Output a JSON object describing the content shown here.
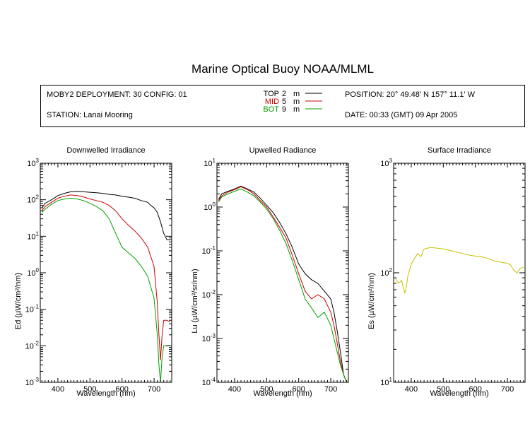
{
  "title": "Marine Optical Buoy NOAA/MLML",
  "header": {
    "deployment": "MOBY2 DEPLOYMENT: 30 CONFIG: 01",
    "station": "STATION: Lanai Mooring",
    "position": "POSITION: 20° 49.48' N   157° 11.1' W",
    "date": "DATE: 00:33 (GMT) 09 Apr 2005"
  },
  "legend": [
    {
      "name": "TOP",
      "depth": "2",
      "unit": "m",
      "color": "#000000"
    },
    {
      "name": "MID",
      "depth": "5",
      "unit": "m",
      "color": "#cc0000"
    },
    {
      "name": "BOT",
      "depth": "9",
      "unit": "m",
      "color": "#00a000"
    }
  ],
  "chart_data": [
    {
      "type": "line",
      "title": "Downwelled Irradiance",
      "xlabel": "Wavelength (nm)",
      "ylabel": "Ed  (µW/cm²/nm)",
      "xlim": [
        345,
        755
      ],
      "ylim": [
        0.001,
        1000
      ],
      "yscale": "log",
      "xticks": [
        400,
        500,
        600,
        700
      ],
      "ytick_labels": [
        "10-3",
        "10-2",
        "10-1",
        "100",
        "101",
        "102",
        "103"
      ],
      "series": [
        {
          "name": "TOP",
          "color": "#000000",
          "x": [
            350,
            360,
            380,
            400,
            420,
            440,
            460,
            480,
            500,
            520,
            540,
            560,
            580,
            600,
            620,
            640,
            660,
            680,
            690,
            700,
            710,
            720,
            730,
            740,
            750
          ],
          "y": [
            60,
            80,
            100,
            130,
            150,
            165,
            170,
            165,
            160,
            155,
            150,
            140,
            135,
            125,
            118,
            110,
            95,
            85,
            70,
            60,
            45,
            25,
            12,
            8,
            8
          ]
        },
        {
          "name": "MID",
          "color": "#cc0000",
          "x": [
            350,
            360,
            380,
            400,
            420,
            440,
            460,
            480,
            500,
            520,
            540,
            560,
            580,
            600,
            620,
            640,
            660,
            680,
            700,
            710,
            715,
            720,
            725,
            730,
            740,
            750
          ],
          "y": [
            50,
            65,
            85,
            110,
            125,
            135,
            130,
            120,
            105,
            95,
            85,
            70,
            50,
            30,
            20,
            14,
            9,
            5,
            1.5,
            0.15,
            0.02,
            0.004,
            0.02,
            0.05,
            0.05,
            0.045
          ]
        },
        {
          "name": "BOT",
          "color": "#00a000",
          "x": [
            350,
            360,
            380,
            400,
            420,
            440,
            460,
            480,
            500,
            520,
            540,
            560,
            580,
            600,
            620,
            640,
            660,
            680,
            700,
            710,
            715,
            720,
            725,
            730,
            740,
            750
          ],
          "y": [
            45,
            55,
            75,
            95,
            105,
            110,
            105,
            95,
            80,
            65,
            50,
            30,
            12,
            5,
            3.5,
            2.5,
            1.5,
            0.8,
            0.2,
            0.02,
            0.003,
            0.001,
            0.005,
            0.01,
            0.01,
            0.01
          ]
        }
      ]
    },
    {
      "type": "line",
      "title": "Upwelled Radiance",
      "xlabel": "Wavelength (nm)",
      "ylabel": "Lu  (µW/cm²/sr/nm)",
      "xlim": [
        345,
        755
      ],
      "ylim": [
        0.0001,
        10
      ],
      "yscale": "log",
      "xticks": [
        400,
        500,
        600,
        700
      ],
      "ytick_labels": [
        "10-4",
        "10-3",
        "10-2",
        "10-1",
        "100",
        "101"
      ],
      "series": [
        {
          "name": "TOP",
          "color": "#000000",
          "x": [
            350,
            360,
            380,
            400,
            420,
            440,
            460,
            480,
            500,
            520,
            540,
            560,
            580,
            600,
            620,
            640,
            660,
            680,
            700,
            710,
            720,
            730,
            740,
            750
          ],
          "y": [
            1.5,
            2,
            2.3,
            2.6,
            3,
            2.6,
            2.2,
            1.6,
            1.1,
            0.75,
            0.45,
            0.25,
            0.12,
            0.05,
            0.03,
            0.022,
            0.018,
            0.012,
            0.008,
            0.004,
            0.0015,
            0.0005,
            0.00015,
            0.0001
          ]
        },
        {
          "name": "MID",
          "color": "#cc0000",
          "x": [
            350,
            360,
            380,
            400,
            420,
            440,
            460,
            480,
            500,
            520,
            540,
            560,
            580,
            600,
            620,
            640,
            660,
            680,
            700,
            710,
            720,
            730,
            740,
            750
          ],
          "y": [
            1.4,
            1.8,
            2.2,
            2.5,
            2.9,
            2.5,
            2.0,
            1.4,
            1.0,
            0.6,
            0.35,
            0.2,
            0.08,
            0.03,
            0.012,
            0.008,
            0.01,
            0.008,
            0.004,
            0.002,
            0.0008,
            0.0003,
            0.00015,
            0.0001
          ]
        },
        {
          "name": "BOT",
          "color": "#00a000",
          "x": [
            350,
            360,
            380,
            400,
            420,
            440,
            460,
            480,
            500,
            520,
            540,
            560,
            580,
            600,
            620,
            640,
            660,
            680,
            700,
            710,
            720,
            730,
            740,
            750
          ],
          "y": [
            1.3,
            1.7,
            2.0,
            2.3,
            2.6,
            2.2,
            1.8,
            1.3,
            0.9,
            0.55,
            0.3,
            0.15,
            0.06,
            0.022,
            0.008,
            0.005,
            0.003,
            0.004,
            0.002,
            0.001,
            0.0005,
            0.00025,
            0.00015,
            0.0001
          ]
        }
      ]
    },
    {
      "type": "line",
      "title": "Surface Irradiance",
      "xlabel": "Wavelength (nm)",
      "ylabel": "Es  (µW/cm²/nm)",
      "xlim": [
        345,
        755
      ],
      "ylim": [
        10,
        1000
      ],
      "yscale": "log",
      "xticks": [
        400,
        500,
        600,
        700
      ],
      "ytick_labels": [
        "101",
        "102",
        "103"
      ],
      "series": [
        {
          "name": "Es",
          "color": "#c8c000",
          "x": [
            350,
            360,
            370,
            380,
            385,
            390,
            400,
            410,
            420,
            430,
            440,
            460,
            480,
            500,
            520,
            540,
            560,
            580,
            600,
            620,
            640,
            660,
            680,
            700,
            710,
            720,
            730,
            740,
            750
          ],
          "y": [
            90,
            80,
            85,
            65,
            75,
            95,
            120,
            135,
            150,
            140,
            165,
            170,
            168,
            165,
            160,
            155,
            150,
            145,
            142,
            140,
            135,
            128,
            125,
            122,
            118,
            105,
            100,
            110,
            112
          ]
        }
      ]
    }
  ]
}
